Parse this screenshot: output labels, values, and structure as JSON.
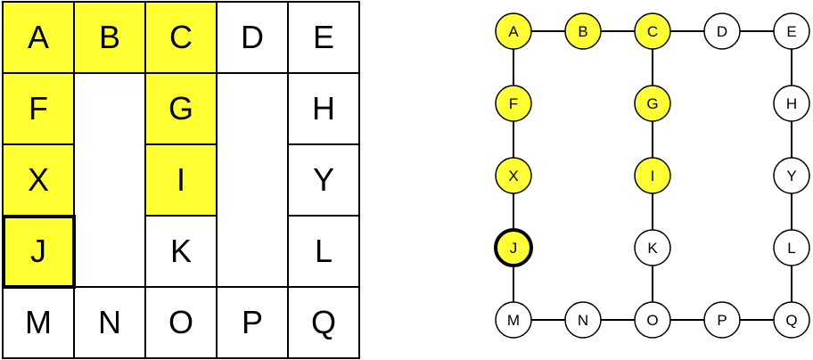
{
  "colors": {
    "highlight": "#ffff33",
    "plain": "#ffffff",
    "line": "#000000"
  },
  "grid": {
    "rows": [
      [
        "A",
        "B",
        "C",
        "D",
        "E"
      ],
      [
        "F",
        "",
        "G",
        "",
        "H"
      ],
      [
        "X",
        "",
        "I",
        "",
        "Y"
      ],
      [
        "J",
        "",
        "K",
        "",
        "L"
      ],
      [
        "M",
        "N",
        "O",
        "P",
        "Q"
      ]
    ],
    "highlighted": [
      "A",
      "B",
      "C",
      "F",
      "G",
      "X",
      "I",
      "J"
    ],
    "current": "J"
  },
  "graph": {
    "nodes": [
      {
        "id": "A",
        "col": 0,
        "row": 0,
        "highlighted": true,
        "current": false
      },
      {
        "id": "B",
        "col": 1,
        "row": 0,
        "highlighted": true,
        "current": false
      },
      {
        "id": "C",
        "col": 2,
        "row": 0,
        "highlighted": true,
        "current": false
      },
      {
        "id": "D",
        "col": 3,
        "row": 0,
        "highlighted": false,
        "current": false
      },
      {
        "id": "E",
        "col": 4,
        "row": 0,
        "highlighted": false,
        "current": false
      },
      {
        "id": "F",
        "col": 0,
        "row": 1,
        "highlighted": true,
        "current": false
      },
      {
        "id": "G",
        "col": 2,
        "row": 1,
        "highlighted": true,
        "current": false
      },
      {
        "id": "H",
        "col": 4,
        "row": 1,
        "highlighted": false,
        "current": false
      },
      {
        "id": "X",
        "col": 0,
        "row": 2,
        "highlighted": true,
        "current": false
      },
      {
        "id": "I",
        "col": 2,
        "row": 2,
        "highlighted": true,
        "current": false
      },
      {
        "id": "Y",
        "col": 4,
        "row": 2,
        "highlighted": false,
        "current": false
      },
      {
        "id": "J",
        "col": 0,
        "row": 3,
        "highlighted": true,
        "current": true
      },
      {
        "id": "K",
        "col": 2,
        "row": 3,
        "highlighted": false,
        "current": false
      },
      {
        "id": "L",
        "col": 4,
        "row": 3,
        "highlighted": false,
        "current": false
      },
      {
        "id": "M",
        "col": 0,
        "row": 4,
        "highlighted": false,
        "current": false
      },
      {
        "id": "N",
        "col": 1,
        "row": 4,
        "highlighted": false,
        "current": false
      },
      {
        "id": "O",
        "col": 2,
        "row": 4,
        "highlighted": false,
        "current": false
      },
      {
        "id": "P",
        "col": 3,
        "row": 4,
        "highlighted": false,
        "current": false
      },
      {
        "id": "Q",
        "col": 4,
        "row": 4,
        "highlighted": false,
        "current": false
      }
    ],
    "edges": [
      [
        "A",
        "B"
      ],
      [
        "B",
        "C"
      ],
      [
        "C",
        "D"
      ],
      [
        "D",
        "E"
      ],
      [
        "A",
        "F"
      ],
      [
        "F",
        "X"
      ],
      [
        "X",
        "J"
      ],
      [
        "J",
        "M"
      ],
      [
        "C",
        "G"
      ],
      [
        "G",
        "I"
      ],
      [
        "I",
        "K"
      ],
      [
        "K",
        "O"
      ],
      [
        "E",
        "H"
      ],
      [
        "H",
        "Y"
      ],
      [
        "Y",
        "L"
      ],
      [
        "L",
        "Q"
      ],
      [
        "M",
        "N"
      ],
      [
        "N",
        "O"
      ],
      [
        "O",
        "P"
      ],
      [
        "P",
        "Q"
      ]
    ]
  }
}
